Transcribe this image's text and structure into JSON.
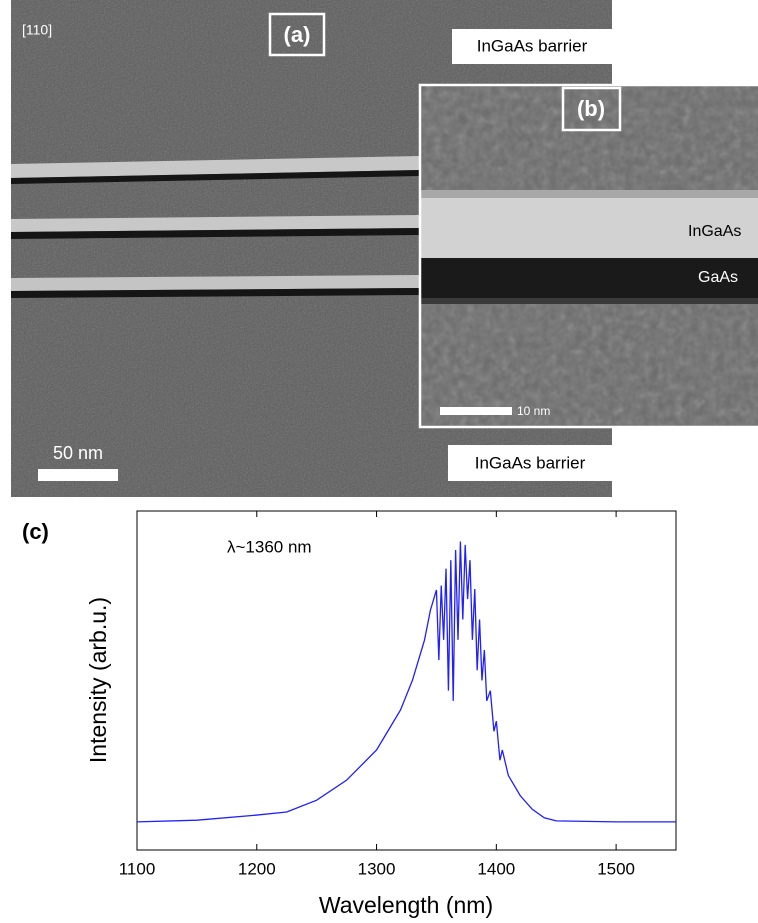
{
  "panel_a": {
    "label": "(a)",
    "orientation": "[110]",
    "top_layer": "InGaAs barrier",
    "bottom_layer": "InGaAs barrier",
    "scale_bar": "50 nm"
  },
  "panel_b": {
    "label": "(b)",
    "layer_1": "InGaAs",
    "layer_2": "GaAs",
    "scale_bar": "10 nm"
  },
  "chart_data": {
    "type": "line",
    "title": "(c)",
    "annotation": "λ~1360 nm",
    "xlabel": "Wavelength (nm)",
    "ylabel": "Intensity (arb.u.)",
    "color": "#1f1fff",
    "x": [
      1100,
      1150,
      1200,
      1225,
      1250,
      1275,
      1300,
      1310,
      1320,
      1330,
      1340,
      1345,
      1350,
      1352,
      1354,
      1356,
      1358,
      1360,
      1362,
      1364,
      1366,
      1368,
      1370,
      1372,
      1374,
      1376,
      1378,
      1380,
      1382,
      1384,
      1386,
      1388,
      1390,
      1392,
      1395,
      1398,
      1400,
      1403,
      1405,
      1410,
      1420,
      1430,
      1440,
      1450,
      1500,
      1550
    ],
    "values": [
      0.083,
      0.088,
      0.103,
      0.112,
      0.147,
      0.206,
      0.295,
      0.354,
      0.413,
      0.501,
      0.619,
      0.708,
      0.767,
      0.56,
      0.78,
      0.62,
      0.83,
      0.47,
      0.855,
      0.44,
      0.885,
      0.62,
      0.91,
      0.68,
      0.9,
      0.74,
      0.855,
      0.62,
      0.77,
      0.53,
      0.68,
      0.5,
      0.59,
      0.44,
      0.47,
      0.35,
      0.38,
      0.265,
      0.295,
      0.22,
      0.16,
      0.12,
      0.095,
      0.086,
      0.083,
      0.083
    ],
    "xlim": [
      1100,
      1550
    ],
    "ylim": [
      0,
      1
    ],
    "xticks": [
      1100,
      1200,
      1300,
      1400,
      1500
    ]
  }
}
